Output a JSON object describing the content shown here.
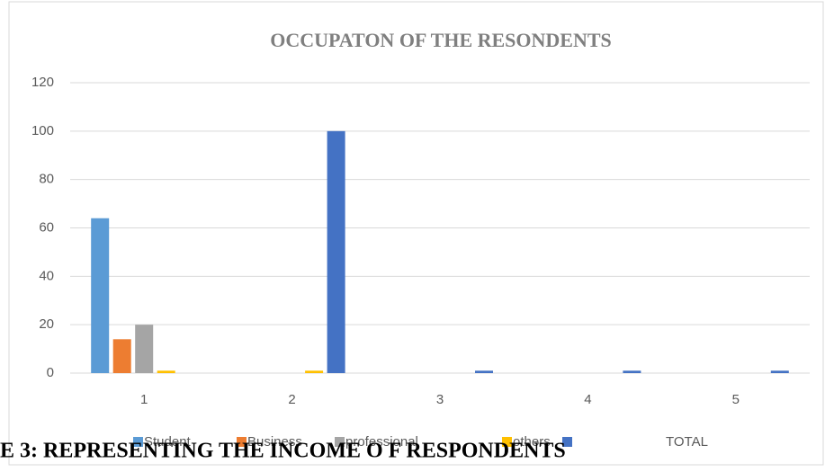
{
  "chart_data": {
    "type": "bar",
    "title": "OCCUPATON OF THE RESONDENTS",
    "categories": [
      "1",
      "2",
      "3",
      "4",
      "5"
    ],
    "series": [
      {
        "name": "Student",
        "color": "#5b9bd5",
        "values": [
          64,
          null,
          null,
          null,
          null
        ]
      },
      {
        "name": "Business",
        "color": "#ed7d31",
        "values": [
          14,
          null,
          null,
          null,
          null
        ]
      },
      {
        "name": "professional",
        "color": "#a5a5a5",
        "values": [
          20,
          null,
          null,
          null,
          null
        ]
      },
      {
        "name": "others",
        "color": "#ffc000",
        "values": [
          1,
          1,
          null,
          null,
          null
        ]
      },
      {
        "name": "TOTAL",
        "color": "#4472c4",
        "values": [
          null,
          100,
          1,
          1,
          1
        ]
      }
    ],
    "ylim": [
      0,
      120
    ],
    "yticks": [
      0,
      20,
      40,
      60,
      80,
      100,
      120
    ],
    "grid": true,
    "legend": "bottom"
  },
  "caption": "E 3: REPRESENTING THE  INCOME O F RESPONDENTS"
}
